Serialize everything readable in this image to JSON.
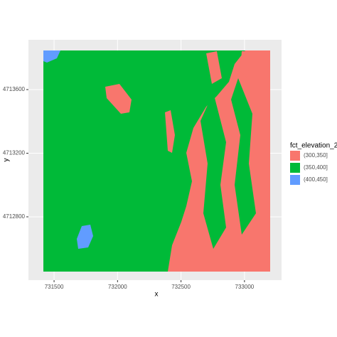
{
  "chart_data": {
    "type": "raster",
    "x_label": "x",
    "y_label": "y",
    "xlim": [
      731298,
      733292
    ],
    "xticks": [
      731500,
      732000,
      732500,
      733000
    ],
    "ylim": [
      4712402,
      4713913
    ],
    "yticks": [
      4712800,
      4713200,
      4713600
    ],
    "grid": true,
    "legend": {
      "title": "fct_elevation_2",
      "position": "right",
      "categories": [
        "(300,350]",
        "(350,400]",
        "(400,450]"
      ],
      "colors": [
        "#F8766D",
        "#00BA38",
        "#619CFF"
      ]
    }
  }
}
